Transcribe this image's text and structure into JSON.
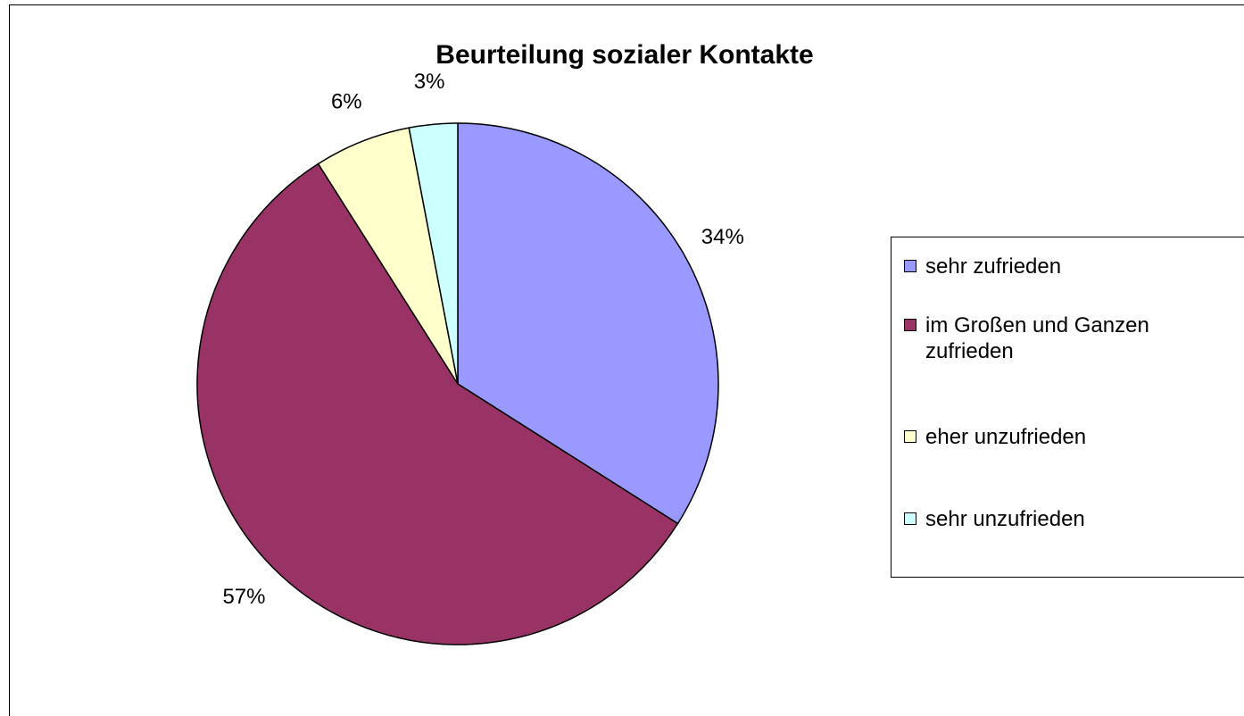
{
  "chart_data": {
    "type": "pie",
    "title": "Beurteilung sozialer Kontakte",
    "categories": [
      "sehr zufrieden",
      "im Großen und Ganzen zufrieden",
      "eher unzufrieden",
      "sehr unzufrieden"
    ],
    "values": [
      34,
      57,
      6,
      3
    ],
    "value_labels": [
      "34%",
      "57%",
      "6%",
      "3%"
    ],
    "colors": [
      "#9999ff",
      "#993366",
      "#ffffcc",
      "#ccffff"
    ],
    "legend": "right"
  }
}
